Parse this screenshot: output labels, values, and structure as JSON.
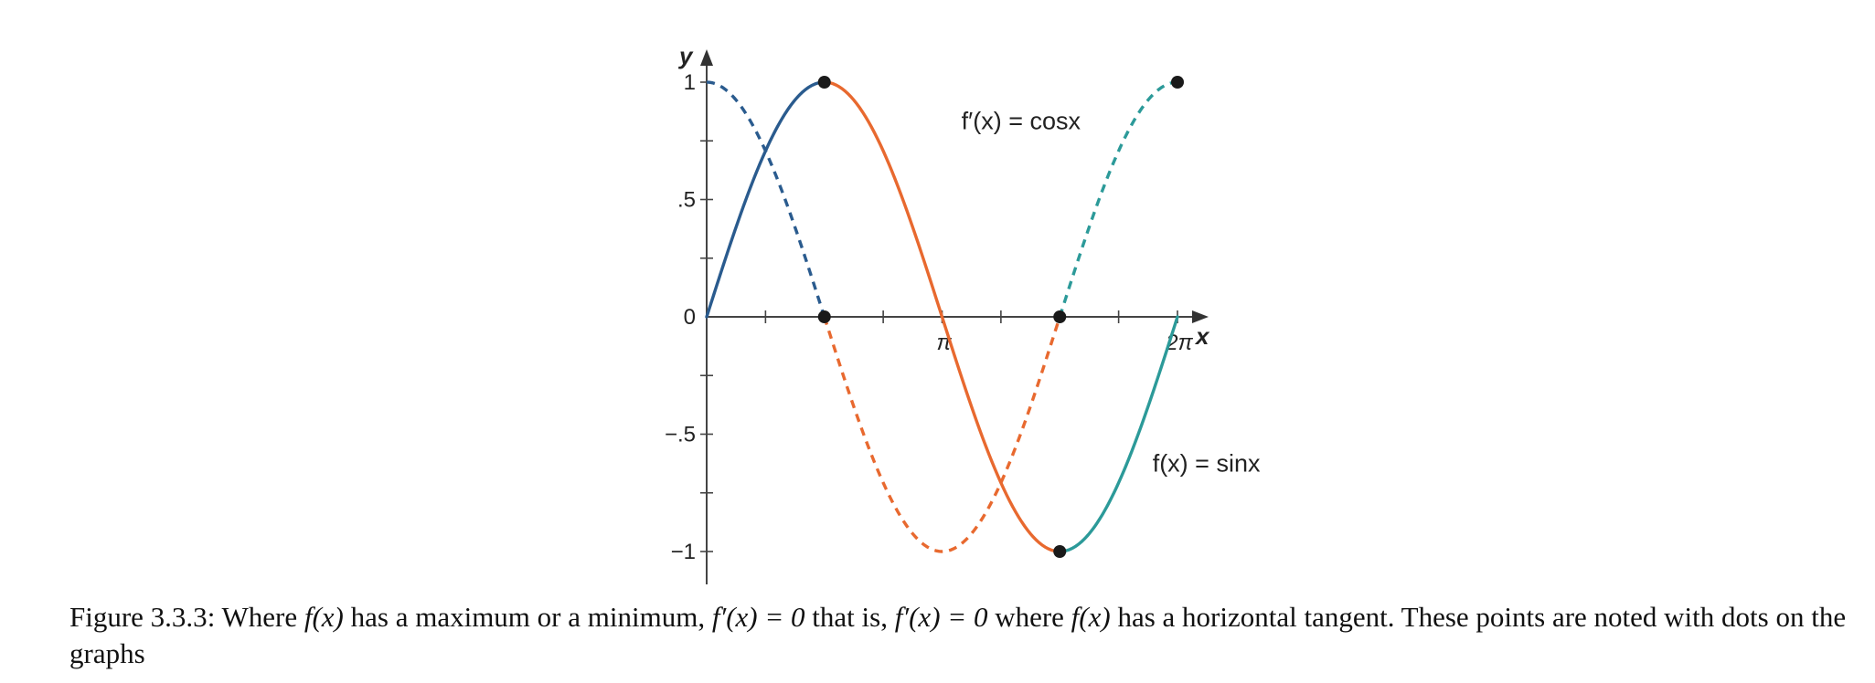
{
  "chart_data": {
    "type": "line",
    "xlabel": "x",
    "ylabel": "y",
    "xlim": [
      0,
      6.2832
    ],
    "ylim": [
      -1,
      1
    ],
    "x_ticks": [
      {
        "value": 3.1416,
        "label": "π"
      },
      {
        "value": 6.2832,
        "label": "2π"
      }
    ],
    "y_ticks": [
      {
        "value": 1,
        "label": "1"
      },
      {
        "value": 0.5,
        "label": ".5"
      },
      {
        "value": 0,
        "label": "0"
      },
      {
        "value": -0.5,
        "label": "−.5"
      },
      {
        "value": -1,
        "label": "−1"
      }
    ],
    "series": [
      {
        "name": "f(x) = sinx",
        "function": "sin",
        "style": "solid",
        "segments": [
          {
            "from": 0,
            "to": 1.5708,
            "color": "#2a5b8e"
          },
          {
            "from": 1.5708,
            "to": 4.7124,
            "color": "#e8692f"
          },
          {
            "from": 4.7124,
            "to": 6.2832,
            "color": "#2c9a99"
          }
        ]
      },
      {
        "name": "f′(x) = cosx",
        "function": "cos",
        "style": "dashed",
        "segments": [
          {
            "from": 0,
            "to": 1.5708,
            "color": "#2a5b8e"
          },
          {
            "from": 1.5708,
            "to": 4.7124,
            "color": "#e8692f"
          },
          {
            "from": 4.7124,
            "to": 6.2832,
            "color": "#2c9a99"
          }
        ]
      }
    ],
    "points": [
      {
        "x": 1.5708,
        "y": 1
      },
      {
        "x": 1.5708,
        "y": 0
      },
      {
        "x": 4.7124,
        "y": 0
      },
      {
        "x": 4.7124,
        "y": -1
      },
      {
        "x": 6.2832,
        "y": 1
      }
    ],
    "annotations": [
      {
        "text": "f′(x) = cosx",
        "x": 3.4,
        "y": 0.8
      },
      {
        "text": "f(x) = sinx",
        "x": 5.95,
        "y": -0.66
      }
    ]
  },
  "caption": {
    "label": "Figure 3.3.3",
    "parts": [
      ": Where ",
      "f(x)",
      " has a maximum or a minimum, ",
      "f′(x) = 0",
      " that is, ",
      "f′(x) = 0",
      " where ",
      "f(x)",
      " has a horizontal tangent. These points are noted with dots on the graphs"
    ]
  }
}
